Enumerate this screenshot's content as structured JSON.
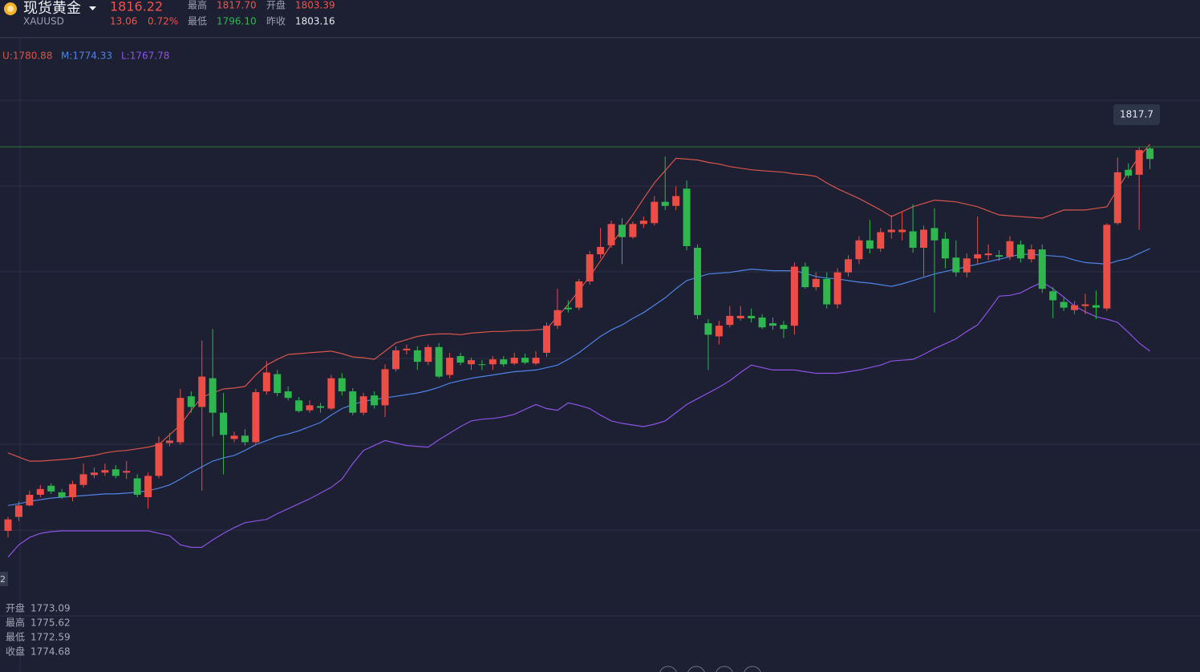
{
  "chart_data": {
    "type": "candlestick",
    "title": "现货黄金",
    "symbol": "XAUUSD",
    "quote": {
      "price": "1816.22",
      "change": "13.06",
      "change_pct": "0.72%"
    },
    "stats": [
      {
        "label": "最高",
        "value": "1817.70",
        "color": "#f0524a"
      },
      {
        "label": "开盘",
        "value": "1803.39",
        "color": "#f0524a"
      },
      {
        "label": "最低",
        "value": "1796.10",
        "color": "#2fb64e"
      },
      {
        "label": "昨收",
        "value": "1803.16",
        "color": "#e6e8ee"
      }
    ],
    "indicator_readout": [
      "U:1780.88",
      "M:1774.33",
      "L:1767.78"
    ],
    "ohlc_readout": [
      {
        "label": "开盘",
        "value": "1773.09"
      },
      {
        "label": "最高",
        "value": "1775.62"
      },
      {
        "label": "最低",
        "value": "1772.59"
      },
      {
        "label": "收盘",
        "value": "1774.68"
      }
    ],
    "crosshair_value": 1817.7,
    "edge_label": "2",
    "ylim": [
      1753.7,
      1831.0
    ],
    "up_color": "#ec4d46",
    "down_color": "#2fb64e",
    "open": [
      1770.9,
      1772.6,
      1774.0,
      1775.3,
      1776.4,
      1775.6,
      1775.0,
      1776.5,
      1777.7,
      1778.0,
      1778.4,
      1778.0,
      1777.3,
      1775.0,
      1777.6,
      1781.6,
      1781.7,
      1787.3,
      1786.0,
      1789.5,
      1785.3,
      1782.1,
      1782.5,
      1781.7,
      1787.9,
      1790.0,
      1787.9,
      1786.8,
      1785.6,
      1786.1,
      1785.8,
      1789.5,
      1787.9,
      1785.3,
      1787.4,
      1786.2,
      1790.6,
      1792.9,
      1792.9,
      1791.5,
      1793.3,
      1789.9,
      1792.2,
      1791.2,
      1791.2,
      1791.2,
      1791.8,
      1791.3,
      1792.0,
      1791.3,
      1792.6,
      1795.9,
      1798.1,
      1798.1,
      1801.3,
      1804.6,
      1805.7,
      1808.2,
      1806.7,
      1808.3,
      1808.4,
      1811.0,
      1810.5,
      1812.6,
      1805.4,
      1796.2,
      1794.6,
      1796.0,
      1796.8,
      1797.1,
      1796.9,
      1796.2,
      1796.0,
      1795.9,
      1803.1,
      1800.6,
      1801.6,
      1798.5,
      1802.4,
      1804.0,
      1806.3,
      1805.3,
      1807.3,
      1807.3,
      1807.4,
      1805.4,
      1807.8,
      1806.5,
      1804.2,
      1802.4,
      1804.1,
      1804.5,
      1804.5,
      1804.3,
      1805.8,
      1804.0,
      1805.2,
      1800.1,
      1798.8,
      1797.8,
      1798.3,
      1798.4,
      1798.0,
      1808.4,
      1814.9,
      1814.3,
      1817.5
    ],
    "high": [
      1772.6,
      1774.5,
      1775.8,
      1776.5,
      1776.7,
      1776.0,
      1777.0,
      1779.1,
      1778.6,
      1779.1,
      1778.9,
      1779.4,
      1777.8,
      1778.0,
      1782.4,
      1782.8,
      1788.2,
      1787.9,
      1794.1,
      1795.5,
      1787.7,
      1783.0,
      1783.3,
      1788.2,
      1791.6,
      1790.5,
      1788.5,
      1787.2,
      1786.8,
      1786.5,
      1789.9,
      1790.1,
      1788.3,
      1787.7,
      1787.9,
      1791.2,
      1793.4,
      1793.6,
      1793.4,
      1793.6,
      1793.8,
      1792.6,
      1792.6,
      1792.0,
      1791.7,
      1792.2,
      1792.2,
      1792.6,
      1792.5,
      1792.8,
      1796.3,
      1800.4,
      1799.0,
      1801.6,
      1805.0,
      1807.8,
      1808.7,
      1809.0,
      1808.6,
      1809.2,
      1811.7,
      1816.5,
      1812.9,
      1813.6,
      1805.8,
      1796.7,
      1796.5,
      1798.3,
      1798.3,
      1798.0,
      1797.3,
      1796.9,
      1796.5,
      1803.6,
      1803.6,
      1802.4,
      1802.4,
      1802.9,
      1804.5,
      1806.8,
      1808.8,
      1807.8,
      1809.4,
      1809.7,
      1810.7,
      1808.1,
      1810.2,
      1807.3,
      1806.3,
      1804.7,
      1809.2,
      1805.8,
      1805.1,
      1806.8,
      1806.3,
      1805.8,
      1805.8,
      1800.6,
      1799.3,
      1798.9,
      1799.8,
      1800.2,
      1808.4,
      1816.4,
      1815.7,
      1817.6,
      1817.7
    ],
    "low": [
      1770.1,
      1772.1,
      1773.9,
      1775.0,
      1775.4,
      1774.8,
      1774.5,
      1776.2,
      1777.3,
      1777.6,
      1777.3,
      1777.2,
      1775.0,
      1773.6,
      1777.3,
      1781.2,
      1781.4,
      1785.3,
      1775.8,
      1782.4,
      1777.8,
      1781.7,
      1781.3,
      1781.4,
      1787.5,
      1787.3,
      1786.8,
      1785.3,
      1785.3,
      1785.3,
      1785.6,
      1787.4,
      1785.0,
      1785.0,
      1785.8,
      1784.8,
      1790.3,
      1792.4,
      1790.5,
      1791.1,
      1789.5,
      1789.5,
      1791.1,
      1790.5,
      1790.5,
      1790.5,
      1790.9,
      1791.1,
      1791.2,
      1791.1,
      1792.1,
      1795.5,
      1797.5,
      1797.8,
      1800.9,
      1804.1,
      1805.4,
      1803.4,
      1806.5,
      1807.8,
      1808.1,
      1810.0,
      1810.0,
      1805.1,
      1796.7,
      1790.5,
      1793.6,
      1795.7,
      1796.5,
      1796.3,
      1795.5,
      1795.4,
      1794.4,
      1794.8,
      1800.4,
      1800.2,
      1798.0,
      1798.0,
      1801.9,
      1803.4,
      1804.7,
      1804.9,
      1806.5,
      1806.3,
      1804.8,
      1801.9,
      1797.5,
      1802.9,
      1801.9,
      1801.8,
      1803.4,
      1803.9,
      1803.8,
      1803.9,
      1803.6,
      1803.6,
      1799.9,
      1796.8,
      1797.7,
      1797.3,
      1797.3,
      1796.7,
      1797.7,
      1808.2,
      1813.9,
      1807.6,
      1815.0
    ],
    "close": [
      1772.3,
      1774.0,
      1775.3,
      1776.0,
      1775.7,
      1775.0,
      1776.6,
      1777.8,
      1778.0,
      1778.3,
      1777.6,
      1778.2,
      1775.3,
      1777.6,
      1781.6,
      1781.9,
      1787.1,
      1786.0,
      1789.7,
      1785.3,
      1782.6,
      1782.5,
      1781.7,
      1787.8,
      1790.2,
      1787.7,
      1787.1,
      1785.5,
      1786.2,
      1785.9,
      1789.5,
      1787.9,
      1785.3,
      1787.3,
      1786.2,
      1790.6,
      1792.9,
      1793.1,
      1791.5,
      1793.3,
      1789.7,
      1792.0,
      1791.4,
      1791.7,
      1791.1,
      1791.8,
      1791.2,
      1792.0,
      1791.4,
      1792.0,
      1795.9,
      1797.8,
      1797.9,
      1801.3,
      1804.6,
      1805.5,
      1808.3,
      1806.7,
      1808.3,
      1808.7,
      1811.0,
      1810.5,
      1811.7,
      1805.6,
      1797.2,
      1794.8,
      1795.9,
      1797.1,
      1797.1,
      1796.8,
      1795.7,
      1795.9,
      1795.5,
      1803.1,
      1800.6,
      1801.6,
      1798.5,
      1802.4,
      1804.0,
      1806.3,
      1805.3,
      1807.3,
      1807.6,
      1807.6,
      1805.4,
      1807.6,
      1806.3,
      1804.1,
      1802.4,
      1804.1,
      1804.6,
      1804.7,
      1804.3,
      1806.2,
      1804.1,
      1805.2,
      1800.4,
      1799.0,
      1798.1,
      1798.4,
      1798.5,
      1798.1,
      1808.2,
      1814.6,
      1814.2,
      1817.3,
      1816.22
    ],
    "series": [
      {
        "color": "#d8544c",
        "values": [
          1780.4,
          1779.9,
          1779.4,
          1779.4,
          1779.5,
          1779.6,
          1779.7,
          1779.9,
          1780.1,
          1780.4,
          1780.6,
          1780.7,
          1780.9,
          1781.1,
          1781.4,
          1782.6,
          1783.8,
          1785.6,
          1787.2,
          1787.7,
          1788.2,
          1788.3,
          1788.5,
          1789.9,
          1791.1,
          1791.8,
          1792.4,
          1792.5,
          1792.6,
          1792.7,
          1792.8,
          1792.5,
          1792.1,
          1792.0,
          1791.8,
          1792.8,
          1793.8,
          1794.2,
          1794.6,
          1794.8,
          1794.9,
          1794.9,
          1794.8,
          1795.0,
          1795.1,
          1795.2,
          1795.2,
          1795.3,
          1795.3,
          1795.4,
          1795.5,
          1797.0,
          1798.5,
          1800.2,
          1801.9,
          1803.8,
          1805.8,
          1807.6,
          1809.4,
          1811.4,
          1813.3,
          1814.8,
          1816.3,
          1816.2,
          1816.1,
          1815.8,
          1815.6,
          1815.3,
          1815.1,
          1814.9,
          1814.8,
          1814.7,
          1814.6,
          1814.4,
          1814.3,
          1814.1,
          1813.3,
          1812.6,
          1812.0,
          1811.4,
          1810.7,
          1810.0,
          1809.2,
          1809.8,
          1810.4,
          1810.8,
          1811.2,
          1811.1,
          1811.0,
          1810.7,
          1810.4,
          1809.9,
          1809.4,
          1809.3,
          1809.2,
          1809.1,
          1809.0,
          1809.5,
          1810.0,
          1810.0,
          1810.0,
          1810.2,
          1810.4,
          1812.6,
          1814.6,
          1816.5,
          1818.0
        ]
      },
      {
        "color": "#4f83e6",
        "values": [
          1774.0,
          1774.2,
          1774.5,
          1774.7,
          1774.9,
          1775.0,
          1775.1,
          1775.2,
          1775.3,
          1775.4,
          1775.4,
          1775.5,
          1775.6,
          1775.8,
          1776.1,
          1776.5,
          1777.2,
          1778.0,
          1778.7,
          1779.4,
          1779.8,
          1780.1,
          1780.7,
          1781.4,
          1781.9,
          1782.4,
          1782.7,
          1783.1,
          1783.6,
          1784.1,
          1785.0,
          1785.8,
          1786.3,
          1786.7,
          1786.9,
          1787.1,
          1787.3,
          1787.5,
          1787.7,
          1788.0,
          1788.4,
          1788.9,
          1789.2,
          1789.5,
          1789.7,
          1789.9,
          1790.1,
          1790.3,
          1790.4,
          1790.5,
          1790.8,
          1791.1,
          1791.8,
          1792.6,
          1793.6,
          1794.6,
          1795.4,
          1796.0,
          1796.8,
          1797.5,
          1798.4,
          1799.3,
          1800.4,
          1801.4,
          1801.8,
          1802.2,
          1802.3,
          1802.4,
          1802.6,
          1802.8,
          1802.7,
          1802.6,
          1802.6,
          1802.6,
          1802.3,
          1801.9,
          1801.7,
          1801.6,
          1801.4,
          1801.2,
          1801.1,
          1800.9,
          1800.7,
          1801.0,
          1801.4,
          1801.8,
          1802.2,
          1802.5,
          1802.8,
          1803.1,
          1803.4,
          1803.7,
          1804.0,
          1804.3,
          1804.6,
          1804.6,
          1804.5,
          1804.4,
          1804.3,
          1803.9,
          1803.6,
          1803.5,
          1803.4,
          1803.8,
          1804.1,
          1804.7,
          1805.3
        ]
      },
      {
        "color": "#8e52e6",
        "values": [
          1767.7,
          1769.2,
          1770.1,
          1770.6,
          1770.8,
          1770.9,
          1770.9,
          1770.9,
          1770.9,
          1770.9,
          1770.9,
          1770.9,
          1770.9,
          1770.9,
          1770.6,
          1770.3,
          1769.2,
          1768.9,
          1768.9,
          1769.8,
          1770.6,
          1771.3,
          1771.9,
          1772.1,
          1772.3,
          1773.0,
          1773.6,
          1774.2,
          1774.8,
          1775.5,
          1776.2,
          1777.2,
          1779.1,
          1780.7,
          1781.3,
          1781.9,
          1781.6,
          1781.3,
          1781.2,
          1781.1,
          1782.0,
          1782.8,
          1783.6,
          1784.3,
          1784.5,
          1784.6,
          1784.8,
          1785.1,
          1785.7,
          1786.3,
          1785.8,
          1785.6,
          1786.5,
          1786.2,
          1785.8,
          1785.0,
          1784.3,
          1784.0,
          1783.8,
          1783.6,
          1783.9,
          1784.3,
          1785.3,
          1786.3,
          1787.0,
          1787.7,
          1788.4,
          1789.2,
          1790.2,
          1791.1,
          1790.8,
          1790.5,
          1790.5,
          1790.5,
          1790.3,
          1790.1,
          1790.1,
          1790.1,
          1790.3,
          1790.5,
          1790.8,
          1791.1,
          1791.6,
          1791.7,
          1791.8,
          1792.4,
          1793.1,
          1793.7,
          1794.3,
          1795.2,
          1796.0,
          1797.7,
          1799.5,
          1799.6,
          1799.9,
          1800.6,
          1801.2,
          1800.4,
          1799.4,
          1798.3,
          1797.6,
          1797.0,
          1796.7,
          1796.3,
          1795.1,
          1793.8,
          1792.8
        ]
      }
    ]
  }
}
